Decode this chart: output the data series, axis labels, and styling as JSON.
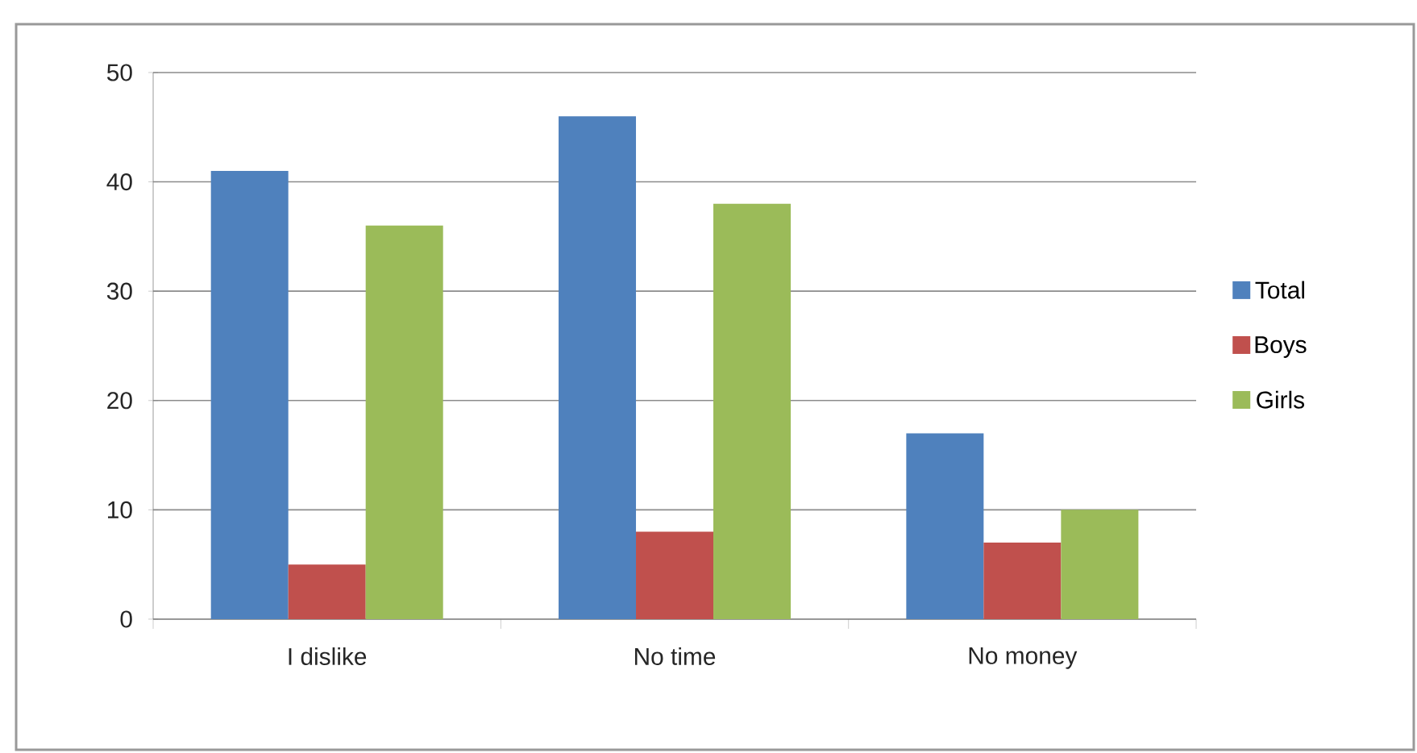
{
  "chart_data": {
    "type": "bar",
    "categories": [
      "I dislike",
      "No time",
      "No money"
    ],
    "series": [
      {
        "name": "Total",
        "color": "#4f81bd",
        "values": [
          41,
          46,
          17
        ]
      },
      {
        "name": "Boys",
        "color": "#c0504d",
        "values": [
          5,
          8,
          7
        ]
      },
      {
        "name": "Girls",
        "color": "#9bbb59",
        "values": [
          36,
          38,
          10
        ]
      }
    ],
    "ylim": [
      0,
      50
    ],
    "yticks": [
      0,
      10,
      20,
      30,
      40,
      50
    ],
    "grid": "y",
    "legend": "right"
  }
}
